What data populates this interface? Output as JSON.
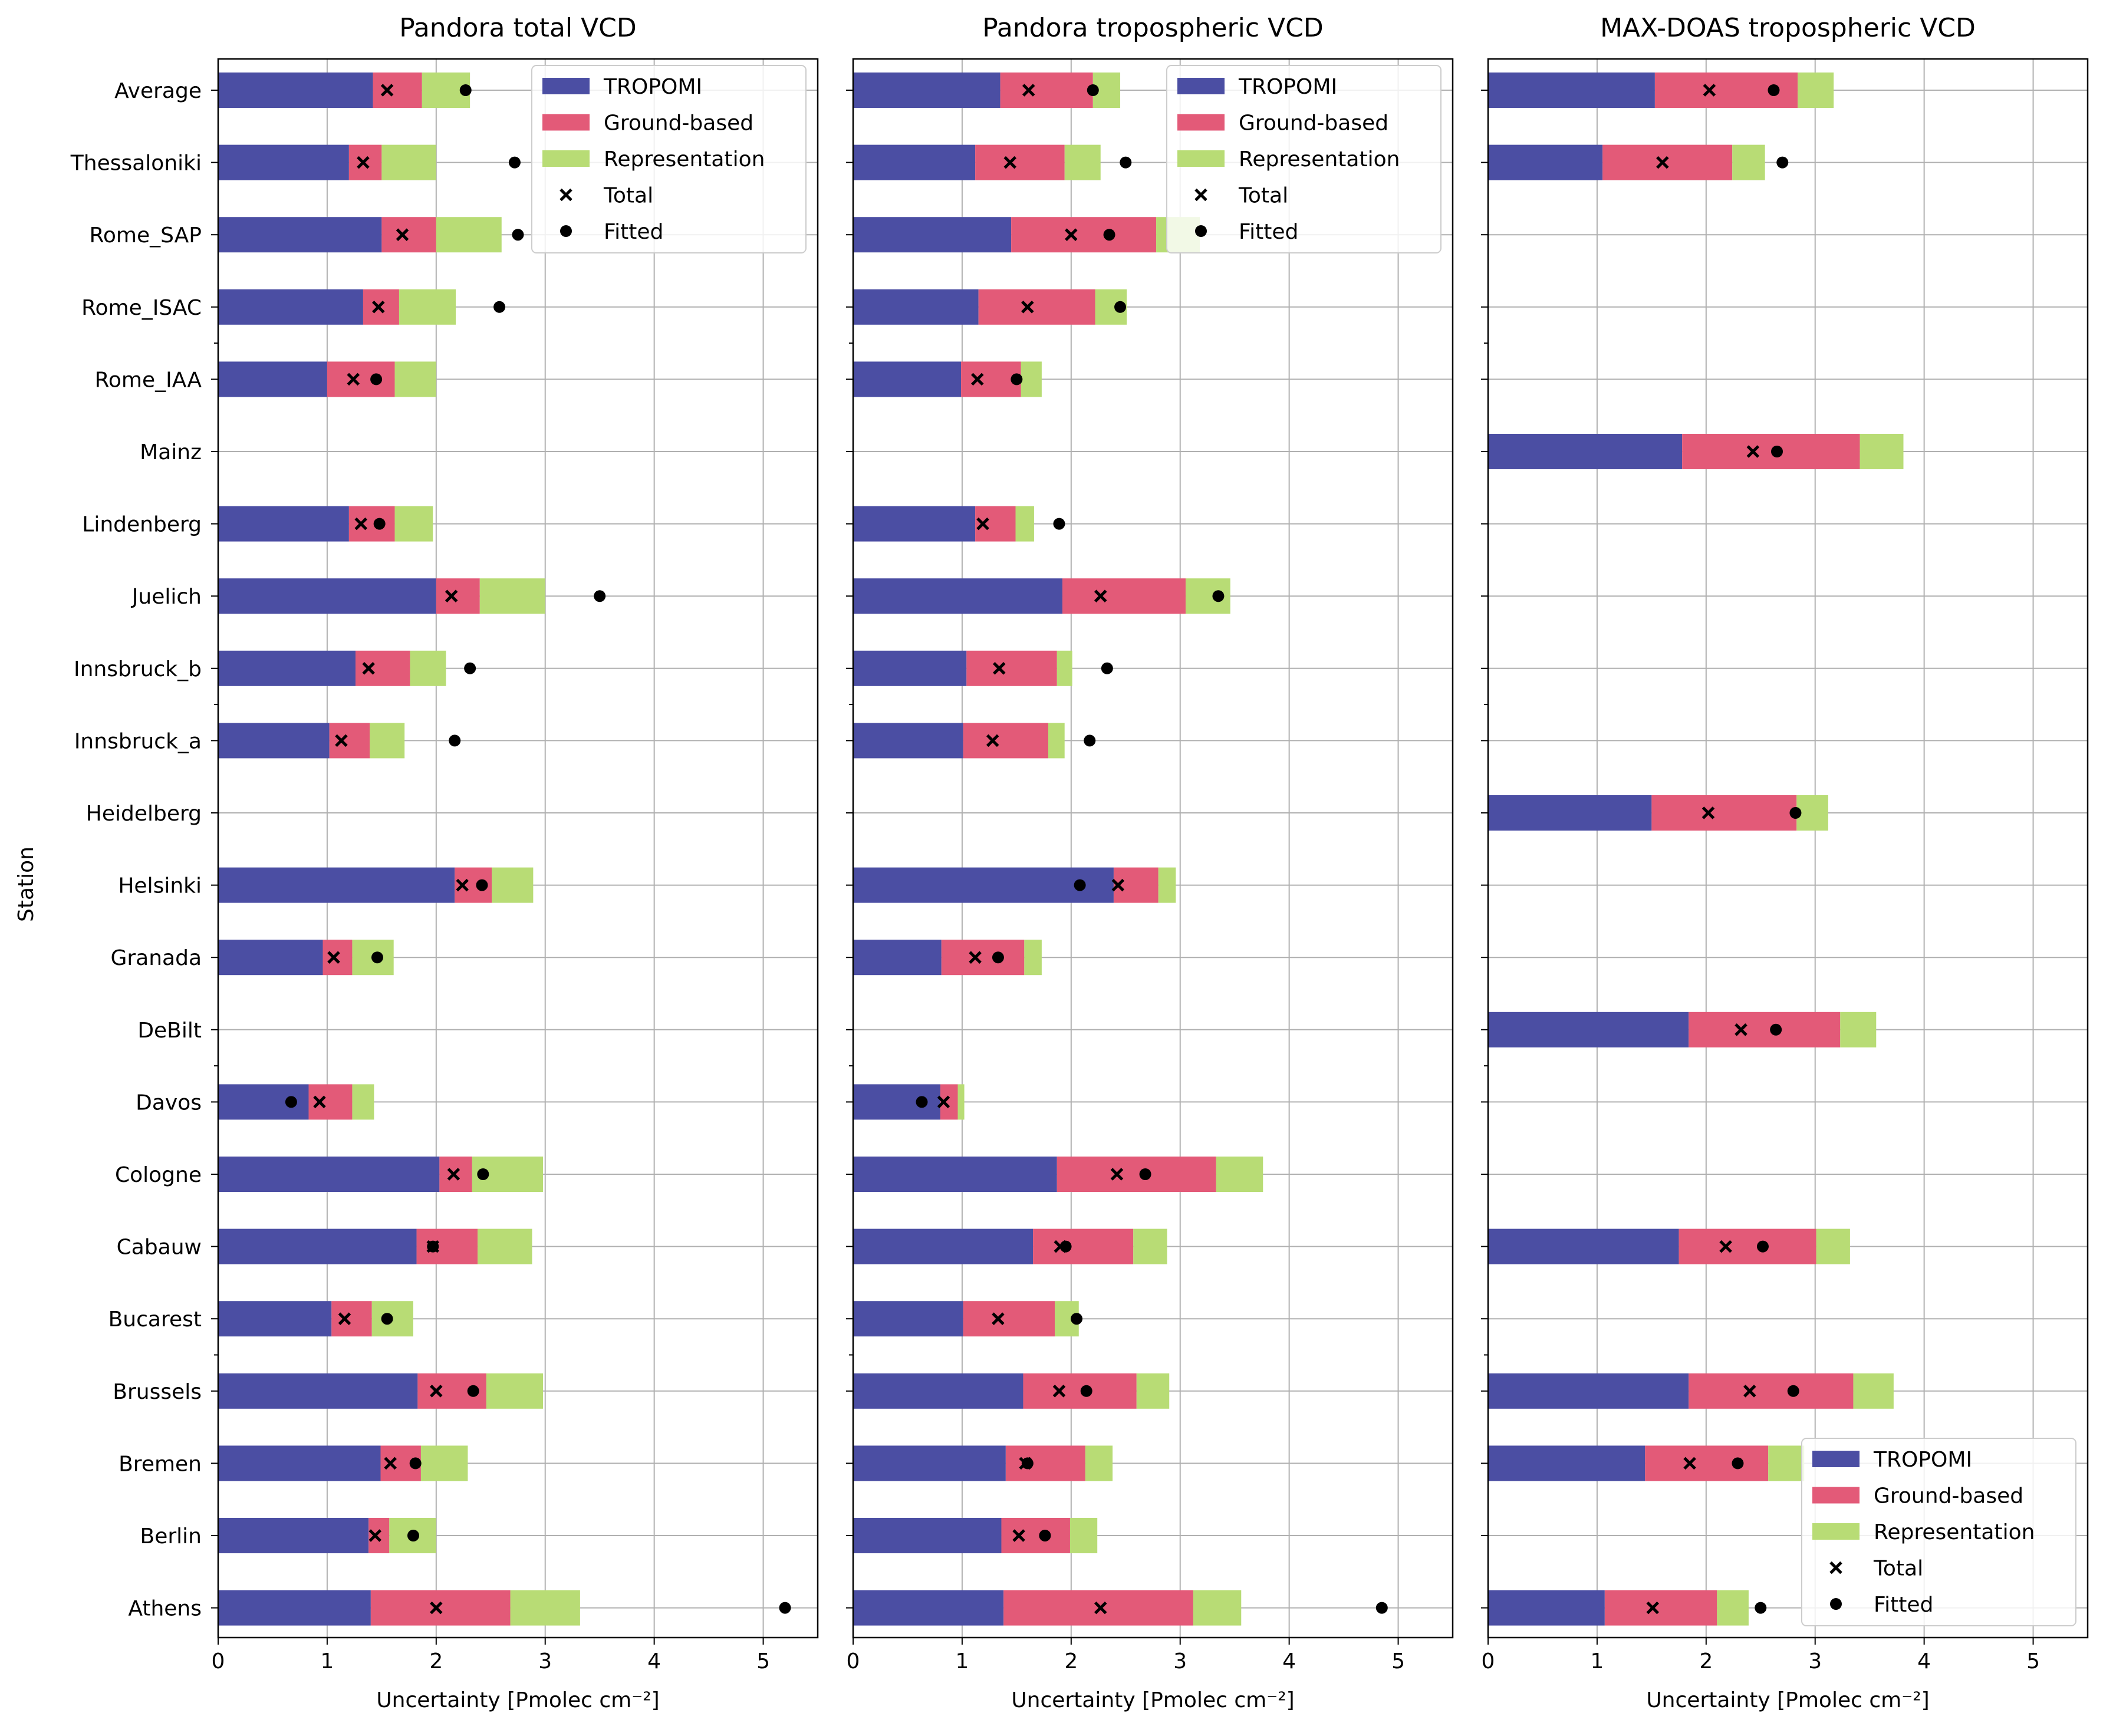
{
  "colors": {
    "tropomi": "#4b4ea3",
    "ground": "#e35a78",
    "repr": "#b8dc75",
    "grid": "#b0b0b0",
    "axis": "#000000"
  },
  "figure": {
    "ylabel": "Station",
    "xlabel": "Uncertainty [Pmolec cm⁻²]",
    "xticks": [
      "0",
      "1",
      "2",
      "3",
      "4",
      "5"
    ],
    "xlim": [
      0,
      5.5
    ],
    "legend_entries": [
      "TROPOMI",
      "Ground-based",
      "Representation",
      "Total",
      "Fitted"
    ]
  },
  "chart_data": [
    {
      "type": "bar",
      "title": "Pandora total VCD",
      "legend_position": "upper right",
      "categories": [
        "Average",
        "Thessaloniki",
        "Rome_SAP",
        "Rome_ISAC",
        "Rome_IAA",
        "Mainz",
        "Lindenberg",
        "Juelich",
        "Innsbruck_b",
        "Innsbruck_a",
        "Heidelberg",
        "Helsinki",
        "Granada",
        "DeBilt",
        "Davos",
        "Cologne",
        "Cabauw",
        "Bucarest",
        "Brussels",
        "Bremen",
        "Berlin",
        "Athens"
      ],
      "series": [
        {
          "name": "TROPOMI",
          "values": [
            1.42,
            1.2,
            1.5,
            1.33,
            1.0,
            null,
            1.2,
            2.0,
            1.26,
            1.02,
            null,
            2.17,
            0.96,
            null,
            0.83,
            2.03,
            1.82,
            1.04,
            1.83,
            1.49,
            1.38,
            1.4
          ]
        },
        {
          "name": "Ground-based",
          "values": [
            0.45,
            0.3,
            0.5,
            0.33,
            0.62,
            null,
            0.42,
            0.4,
            0.5,
            0.37,
            null,
            0.34,
            0.27,
            null,
            0.4,
            0.3,
            0.56,
            0.37,
            0.63,
            0.37,
            0.19,
            1.28
          ]
        },
        {
          "name": "Representation",
          "values": [
            0.44,
            0.5,
            0.6,
            0.52,
            0.38,
            null,
            0.35,
            0.6,
            0.33,
            0.32,
            null,
            0.38,
            0.38,
            null,
            0.2,
            0.65,
            0.5,
            0.38,
            0.52,
            0.43,
            0.43,
            0.64
          ]
        },
        {
          "name": "Total",
          "values": [
            1.55,
            1.33,
            1.69,
            1.47,
            1.24,
            null,
            1.31,
            2.14,
            1.38,
            1.13,
            null,
            2.24,
            1.06,
            null,
            0.93,
            2.16,
            1.97,
            1.16,
            2.0,
            1.58,
            1.44,
            2.0
          ]
        },
        {
          "name": "Fitted",
          "values": [
            2.27,
            2.72,
            2.75,
            2.58,
            1.45,
            null,
            1.48,
            3.5,
            2.31,
            2.17,
            null,
            2.42,
            1.46,
            null,
            0.67,
            2.43,
            1.97,
            1.55,
            2.34,
            1.81,
            1.79,
            5.2
          ]
        }
      ]
    },
    {
      "type": "bar",
      "title": "Pandora tropospheric VCD",
      "legend_position": "upper right",
      "categories": [
        "Average",
        "Thessaloniki",
        "Rome_SAP",
        "Rome_ISAC",
        "Rome_IAA",
        "Mainz",
        "Lindenberg",
        "Juelich",
        "Innsbruck_b",
        "Innsbruck_a",
        "Heidelberg",
        "Helsinki",
        "Granada",
        "DeBilt",
        "Davos",
        "Cologne",
        "Cabauw",
        "Bucarest",
        "Brussels",
        "Bremen",
        "Berlin",
        "Athens"
      ],
      "series": [
        {
          "name": "TROPOMI",
          "values": [
            1.35,
            1.12,
            1.45,
            1.15,
            0.99,
            null,
            1.12,
            1.92,
            1.04,
            1.01,
            null,
            2.39,
            0.81,
            null,
            0.8,
            1.87,
            1.65,
            1.01,
            1.56,
            1.4,
            1.36,
            1.38
          ]
        },
        {
          "name": "Ground-based",
          "values": [
            0.85,
            0.82,
            1.33,
            1.07,
            0.55,
            null,
            0.37,
            1.13,
            0.83,
            0.78,
            null,
            0.41,
            0.76,
            null,
            0.16,
            1.46,
            0.92,
            0.84,
            1.04,
            0.73,
            0.63,
            1.74
          ]
        },
        {
          "name": "Representation",
          "values": [
            0.25,
            0.33,
            0.4,
            0.29,
            0.19,
            null,
            0.17,
            0.41,
            0.14,
            0.15,
            null,
            0.16,
            0.16,
            null,
            0.06,
            0.43,
            0.31,
            0.22,
            0.3,
            0.25,
            0.25,
            0.44
          ]
        },
        {
          "name": "Total",
          "values": [
            1.61,
            1.44,
            2.0,
            1.6,
            1.14,
            null,
            1.19,
            2.27,
            1.34,
            1.28,
            null,
            2.43,
            1.12,
            null,
            0.83,
            2.42,
            1.9,
            1.33,
            1.89,
            1.58,
            1.52,
            2.27
          ]
        },
        {
          "name": "Fitted",
          "values": [
            2.2,
            2.5,
            2.35,
            2.45,
            1.5,
            null,
            1.89,
            3.35,
            2.33,
            2.17,
            null,
            2.08,
            1.33,
            null,
            0.63,
            2.68,
            1.95,
            2.05,
            2.14,
            1.6,
            1.76,
            4.85
          ]
        }
      ]
    },
    {
      "type": "bar",
      "title": "MAX-DOAS tropospheric VCD",
      "legend_position": "lower right",
      "categories": [
        "Average",
        "Thessaloniki",
        "Rome_SAP",
        "Rome_ISAC",
        "Rome_IAA",
        "Mainz",
        "Lindenberg",
        "Juelich",
        "Innsbruck_b",
        "Innsbruck_a",
        "Heidelberg",
        "Helsinki",
        "Granada",
        "DeBilt",
        "Davos",
        "Cologne",
        "Cabauw",
        "Bucarest",
        "Brussels",
        "Bremen",
        "Berlin",
        "Athens"
      ],
      "series": [
        {
          "name": "TROPOMI",
          "values": [
            1.53,
            1.05,
            null,
            null,
            null,
            1.78,
            null,
            null,
            null,
            null,
            1.5,
            null,
            null,
            1.84,
            null,
            null,
            1.75,
            null,
            1.84,
            1.44,
            null,
            1.07
          ]
        },
        {
          "name": "Ground-based",
          "values": [
            1.31,
            1.19,
            null,
            null,
            null,
            1.63,
            null,
            null,
            null,
            null,
            1.33,
            null,
            null,
            1.39,
            null,
            null,
            1.26,
            null,
            1.51,
            1.13,
            null,
            1.03
          ]
        },
        {
          "name": "Representation",
          "values": [
            0.33,
            0.3,
            null,
            null,
            null,
            0.4,
            null,
            null,
            null,
            null,
            0.29,
            null,
            null,
            0.33,
            null,
            null,
            0.31,
            null,
            0.37,
            0.33,
            null,
            0.29
          ]
        },
        {
          "name": "Total",
          "values": [
            2.03,
            1.6,
            null,
            null,
            null,
            2.43,
            null,
            null,
            null,
            null,
            2.02,
            null,
            null,
            2.32,
            null,
            null,
            2.18,
            null,
            2.4,
            1.85,
            null,
            1.51
          ]
        },
        {
          "name": "Fitted",
          "values": [
            2.62,
            2.7,
            null,
            null,
            null,
            2.65,
            null,
            null,
            null,
            null,
            2.82,
            null,
            null,
            2.64,
            null,
            null,
            2.52,
            null,
            2.8,
            2.29,
            null,
            2.5
          ]
        }
      ]
    }
  ]
}
